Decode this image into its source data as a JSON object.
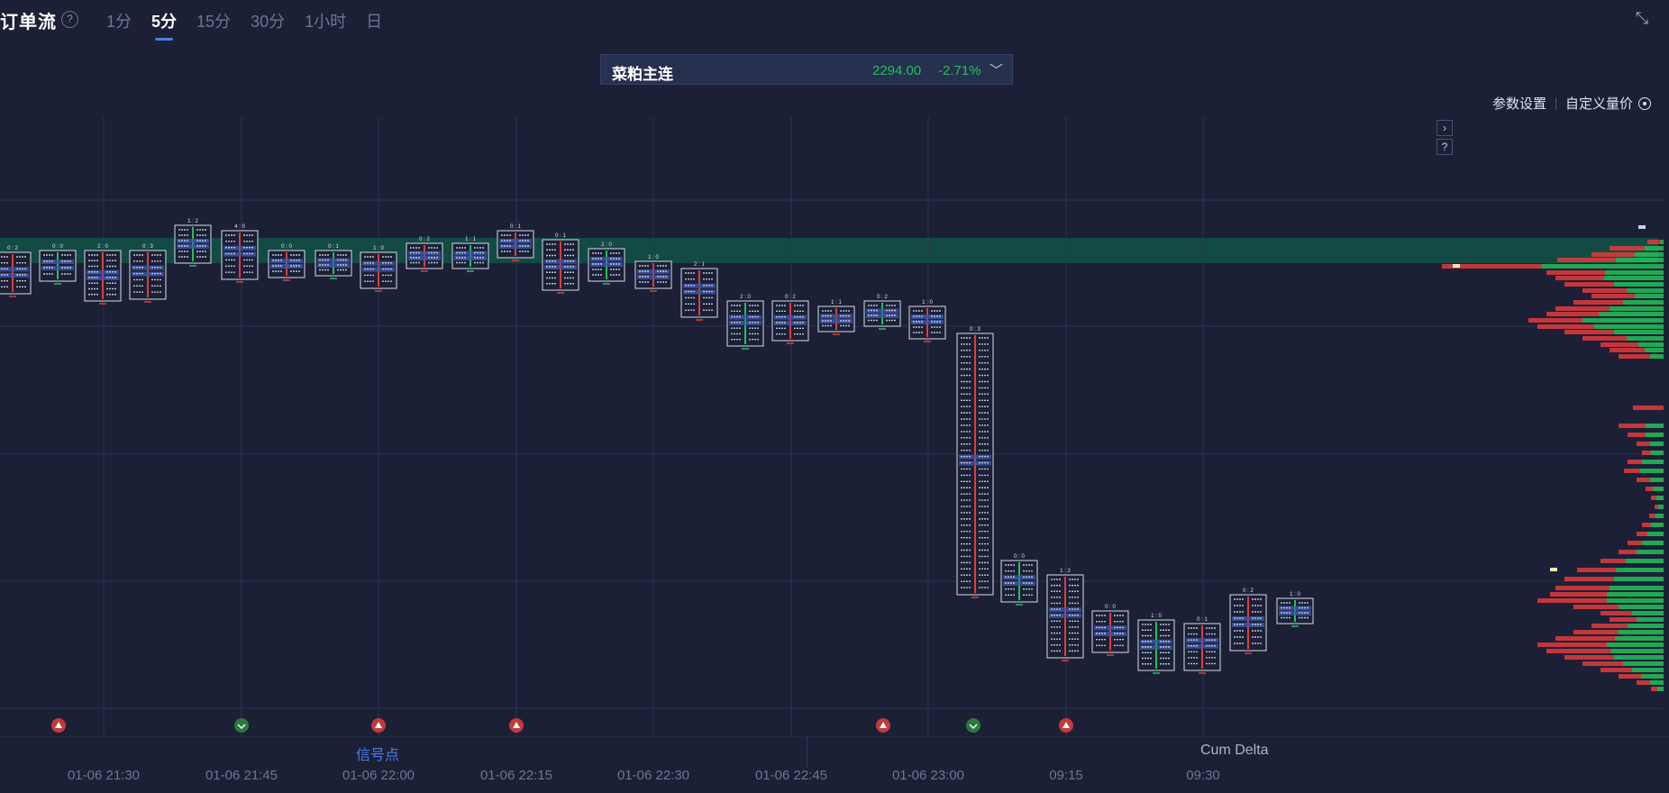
{
  "header": {
    "title": "订单流",
    "periods": [
      "1分",
      "5分",
      "15分",
      "30分",
      "1小时",
      "日"
    ],
    "active_period": "5分"
  },
  "contract": {
    "name": "菜粕主连",
    "price": "2294.00",
    "change": "-2.71%"
  },
  "toolbar": {
    "params_label": "参数设置",
    "custom_label": "自定义量价"
  },
  "tabs": {
    "signal": "信号点",
    "delta": "Cum Delta"
  },
  "time_labels": [
    "01-06 21:30",
    "01-06 21:45",
    "01-06 22:00",
    "01-06 22:15",
    "01-06 22:30",
    "01-06 22:45",
    "01-06 23:00",
    "09:15",
    "09:30"
  ],
  "colors": {
    "background": "#1b2036",
    "up": "#24c05a",
    "down": "#e03c3c",
    "highlight_band": "#12584a",
    "active_tab": "#4d7de8"
  },
  "chart_data": {
    "type": "footprint",
    "bars": [
      {
        "time": "21:20",
        "ask_bid": "0 : 2"
      },
      {
        "time": "21:25",
        "ask_bid": "0 : 0"
      },
      {
        "time": "21:30",
        "ask_bid": "2 : 0"
      },
      {
        "time": "21:35",
        "ask_bid": "0 : 3"
      },
      {
        "time": "21:40",
        "ask_bid": "1 : 2"
      },
      {
        "time": "21:45",
        "ask_bid": "4 : 0"
      },
      {
        "time": "21:50",
        "ask_bid": "0 : 0"
      },
      {
        "time": "21:55",
        "ask_bid": "0 : 1"
      },
      {
        "time": "22:00",
        "ask_bid": "1 : 0"
      },
      {
        "time": "22:05",
        "ask_bid": "0 : 2"
      },
      {
        "time": "22:10",
        "ask_bid": "1 : 1"
      },
      {
        "time": "22:15",
        "ask_bid": "0 : 1"
      },
      {
        "time": "22:20",
        "ask_bid": "0 : 1"
      },
      {
        "time": "22:25",
        "ask_bid": "2 : 0"
      },
      {
        "time": "22:30",
        "ask_bid": "1 : 0"
      },
      {
        "time": "22:35",
        "ask_bid": "2 : 1"
      },
      {
        "time": "22:40",
        "ask_bid": "2 : 0"
      },
      {
        "time": "22:45",
        "ask_bid": "0 : 2"
      },
      {
        "time": "22:50",
        "ask_bid": "1 : 1"
      },
      {
        "time": "22:55",
        "ask_bid": "0 : 2"
      },
      {
        "time": "23:00",
        "ask_bid": "1 : 0"
      },
      {
        "time": "09:00",
        "ask_bid": "0 : 3"
      },
      {
        "time": "09:05",
        "ask_bid": "0 : 0"
      },
      {
        "time": "09:10",
        "ask_bid": "1 : 2"
      },
      {
        "time": "09:15",
        "ask_bid": "0 : 0"
      },
      {
        "time": "09:20",
        "ask_bid": "1 : 0"
      },
      {
        "time": "09:25",
        "ask_bid": "0 : 1"
      },
      {
        "time": "09:30",
        "ask_bid": "0 : 2"
      },
      {
        "time": "09:35",
        "ask_bid": "1 : 0"
      }
    ],
    "signals": [
      {
        "time": "21:20",
        "kind": "down"
      },
      {
        "time": "21:45",
        "kind": "up"
      },
      {
        "time": "22:00",
        "kind": "down"
      },
      {
        "time": "22:15",
        "kind": "down"
      },
      {
        "time": "22:55",
        "kind": "down"
      },
      {
        "time": "23:00",
        "kind": "up"
      },
      {
        "time": "09:10",
        "kind": "down"
      }
    ],
    "grid": true
  }
}
